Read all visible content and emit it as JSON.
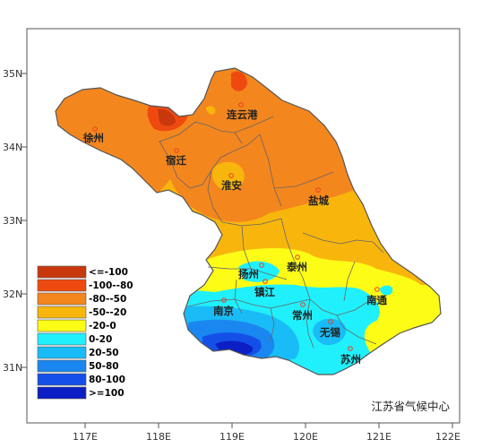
{
  "map": {
    "lat_labels": [
      "35N",
      "34N",
      "33N",
      "32N",
      "31N"
    ],
    "lon_labels": [
      "117E",
      "118E",
      "119E",
      "120E",
      "121E",
      "122E"
    ],
    "cities": [
      {
        "name": "连云港"
      },
      {
        "name": "徐州"
      },
      {
        "name": "宿迁"
      },
      {
        "name": "淮安"
      },
      {
        "name": "盐城"
      },
      {
        "name": "扬州"
      },
      {
        "name": "泰州"
      },
      {
        "name": "镇江"
      },
      {
        "name": "南京"
      },
      {
        "name": "常州"
      },
      {
        "name": "南通"
      },
      {
        "name": "无锡"
      },
      {
        "name": "苏州"
      }
    ],
    "credit": "江苏省气候中心"
  },
  "legend": {
    "items": [
      {
        "label": "<=-100",
        "color": "#c8380c"
      },
      {
        "label": "-100--80",
        "color": "#ee4a10"
      },
      {
        "label": "-80--50",
        "color": "#f4861e"
      },
      {
        "label": "-50--20",
        "color": "#f8b60c"
      },
      {
        "label": "-20-0",
        "color": "#fdfc16"
      },
      {
        "label": "0-20",
        "color": "#1ff0fc"
      },
      {
        "label": "20-50",
        "color": "#19bcf6"
      },
      {
        "label": "50-80",
        "color": "#1a87f0"
      },
      {
        "label": "80-100",
        "color": "#1450e8"
      },
      {
        "label": ">=100",
        "color": "#0c1fc4"
      }
    ]
  }
}
